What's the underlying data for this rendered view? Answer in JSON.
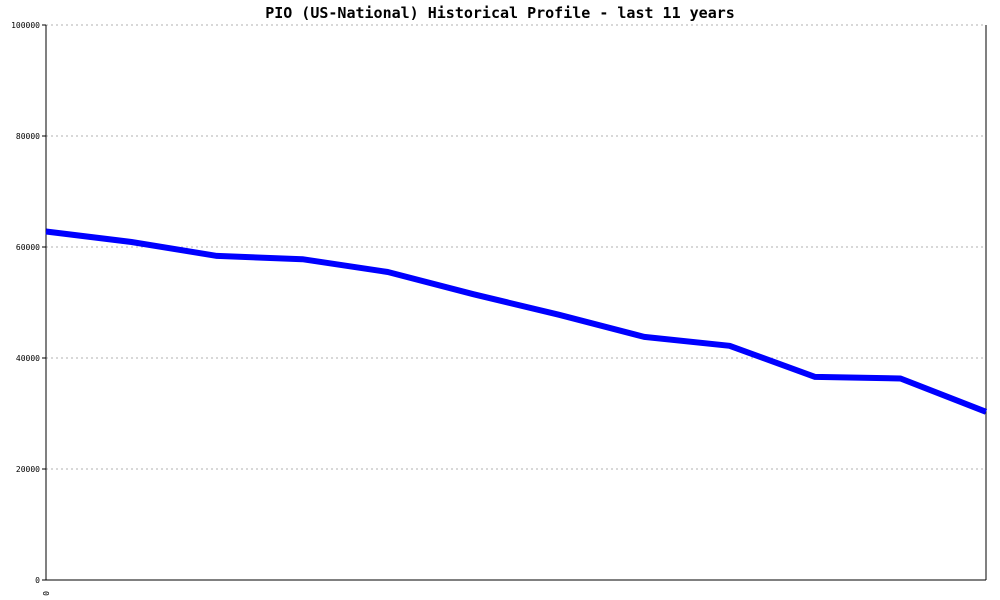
{
  "chart_data": {
    "type": "line",
    "title": "PIO (US-National) Historical Profile - last 11 years",
    "xlabel": "",
    "ylabel": "",
    "ylim": [
      0,
      100000
    ],
    "yticks": [
      0,
      20000,
      40000,
      60000,
      80000,
      100000
    ],
    "ytick_labels": [
      "0",
      "20000",
      "40000",
      "60000",
      "80000",
      "100000"
    ],
    "xtick_labels": [
      "0"
    ],
    "grid": true,
    "color": "#0000ff",
    "series": [
      {
        "values": [
          62800,
          60900,
          58400,
          57800,
          55500,
          51500,
          47800,
          43800,
          42200,
          36600,
          36300,
          30300
        ]
      }
    ]
  }
}
